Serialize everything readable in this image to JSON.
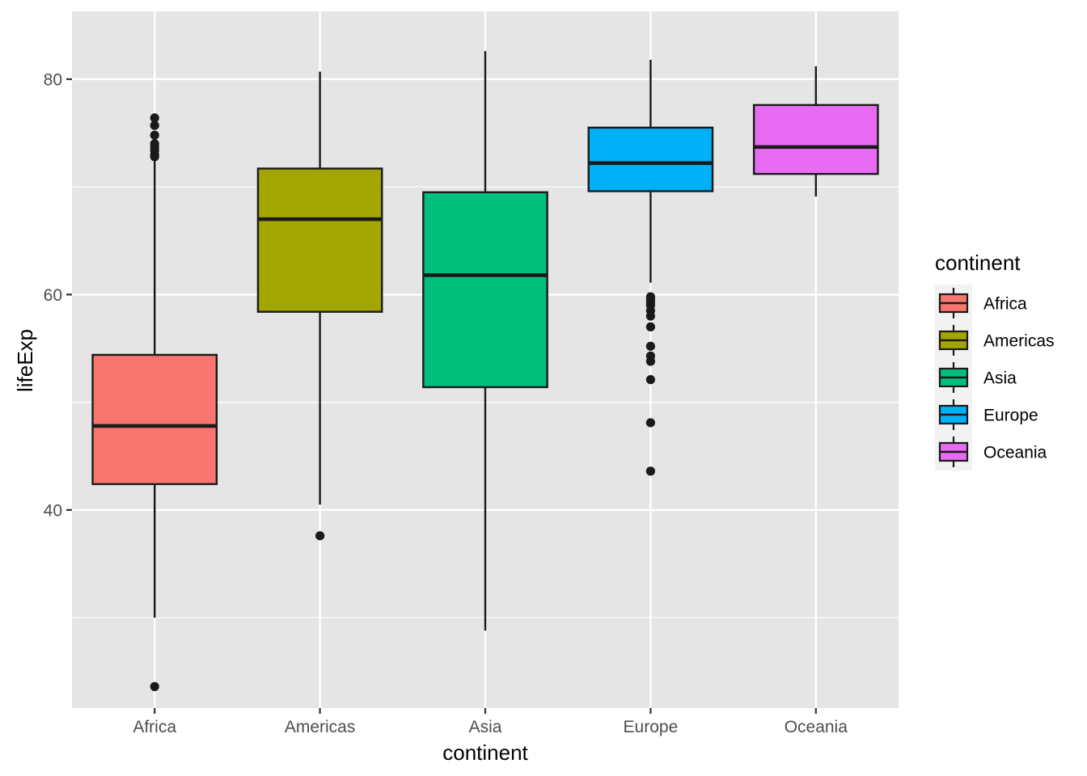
{
  "chart_data": {
    "type": "boxplot",
    "title": "",
    "xlabel": "continent",
    "ylabel": "lifeExp",
    "ylim": [
      21.6,
      86.3
    ],
    "yticks": [
      40,
      60,
      80
    ],
    "minor_yticks": [
      30,
      50,
      70
    ],
    "grid": true,
    "legend": {
      "title": "continent",
      "position": "right"
    },
    "colors": {
      "panel_background": "#E5E5E5",
      "grid": "#FFFFFF",
      "box_outline": "#1A1A1A"
    },
    "categories": [
      "Africa",
      "Americas",
      "Asia",
      "Europe",
      "Oceania"
    ],
    "series": [
      {
        "name": "Africa",
        "color": "#F8766D",
        "whisker_low": 30.0,
        "q1": 42.4,
        "median": 47.8,
        "q3": 54.4,
        "whisker_high": 72.7,
        "outliers": [
          23.6,
          72.8,
          73.0,
          73.4,
          73.7,
          74.0,
          74.8,
          75.7,
          76.4
        ]
      },
      {
        "name": "Americas",
        "color": "#A3A500",
        "whisker_low": 40.5,
        "q1": 58.4,
        "median": 67.0,
        "q3": 71.7,
        "whisker_high": 80.7,
        "outliers": [
          37.6
        ]
      },
      {
        "name": "Asia",
        "color": "#00BF7D",
        "whisker_low": 28.8,
        "q1": 51.4,
        "median": 61.8,
        "q3": 69.5,
        "whisker_high": 82.6,
        "outliers": []
      },
      {
        "name": "Europe",
        "color": "#00B0F6",
        "whisker_low": 61.1,
        "q1": 69.6,
        "median": 72.2,
        "q3": 75.5,
        "whisker_high": 81.8,
        "outliers": [
          43.6,
          48.1,
          52.1,
          53.8,
          54.3,
          55.2,
          57.0,
          58.0,
          58.5,
          59.0,
          59.3,
          59.6,
          59.8
        ]
      },
      {
        "name": "Oceania",
        "color": "#E76BF3",
        "whisker_low": 69.1,
        "q1": 71.2,
        "median": 73.7,
        "q3": 77.6,
        "whisker_high": 81.2,
        "outliers": []
      }
    ]
  }
}
